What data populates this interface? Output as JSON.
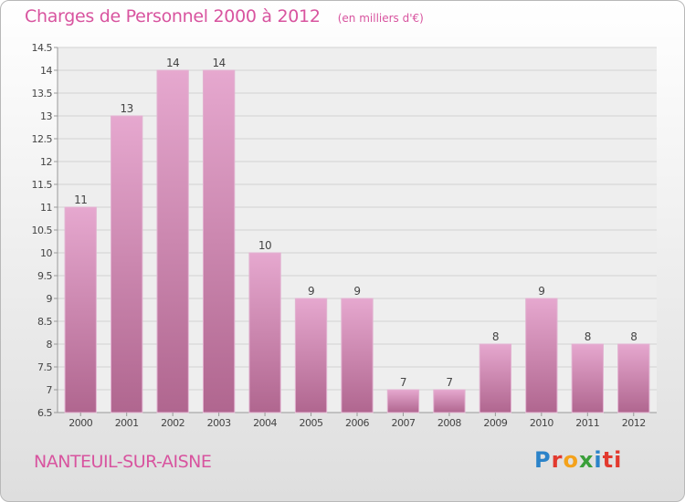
{
  "header": {
    "title": "Charges de Personnel 2000 à 2012",
    "unit": "(en milliers d'€)"
  },
  "footer": {
    "place": "NANTEUIL-SUR-AISNE",
    "logo_letters": [
      "P",
      "r",
      "o",
      "x",
      "i",
      "ti"
    ]
  },
  "colors": {
    "bar_light": "#e6a8cf",
    "bar_dark": "#b0668f",
    "title": "#d8549f"
  },
  "chart_data": {
    "type": "bar",
    "title": "Charges de Personnel 2000 à 2012",
    "subtitle": "(en milliers d'€)",
    "categories": [
      "2000",
      "2001",
      "2002",
      "2003",
      "2004",
      "2005",
      "2006",
      "2007",
      "2008",
      "2009",
      "2010",
      "2011",
      "2012"
    ],
    "values": [
      11,
      13,
      14,
      14,
      10,
      9,
      9,
      7,
      7,
      8,
      9,
      8,
      8
    ],
    "ylim": [
      6.5,
      14.5
    ],
    "yticks": [
      "6.5",
      "7",
      "7.5",
      "8",
      "8.5",
      "9",
      "9.5",
      "10",
      "10.5",
      "11",
      "11.5",
      "12",
      "12.5",
      "13",
      "13.5",
      "14",
      "14.5"
    ],
    "grid": true
  }
}
